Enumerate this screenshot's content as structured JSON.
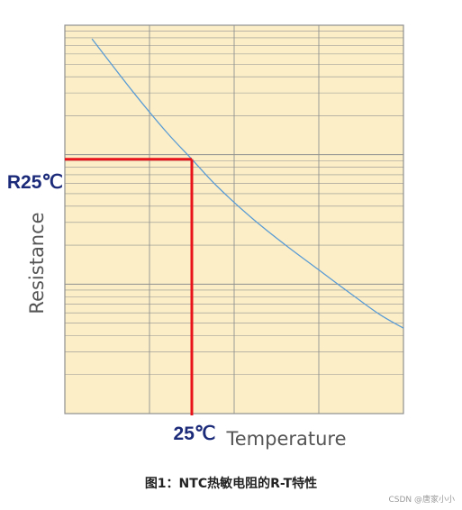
{
  "chart_data": {
    "type": "line",
    "title": "",
    "xlabel": "Temperature",
    "ylabel": "Resistance",
    "y_scale": "log",
    "grid": true,
    "colors": {
      "background": "#fcefc7",
      "grid": "#8f8f8f",
      "curve": "#5a9bd4",
      "marker": "#e8131a",
      "label": "#1c2a7a",
      "axis_title": "#555555"
    },
    "series": [
      {
        "x": [
          0.08,
          0.2,
          0.3,
          0.375,
          0.45,
          0.55,
          0.65,
          0.75,
          0.85,
          0.93,
          1.0
        ],
        "y": [
          0.965,
          0.83,
          0.725,
          0.655,
          0.585,
          0.505,
          0.435,
          0.37,
          0.305,
          0.255,
          0.22
        ]
      }
    ],
    "annotations": {
      "reference_x_label": "25℃",
      "reference_y_label": "R25℃",
      "reference_x": 0.375,
      "reference_y": 0.655
    }
  },
  "caption": "图1：NTC热敏电阻的R-T特性",
  "watermark": "CSDN @唐家小小"
}
